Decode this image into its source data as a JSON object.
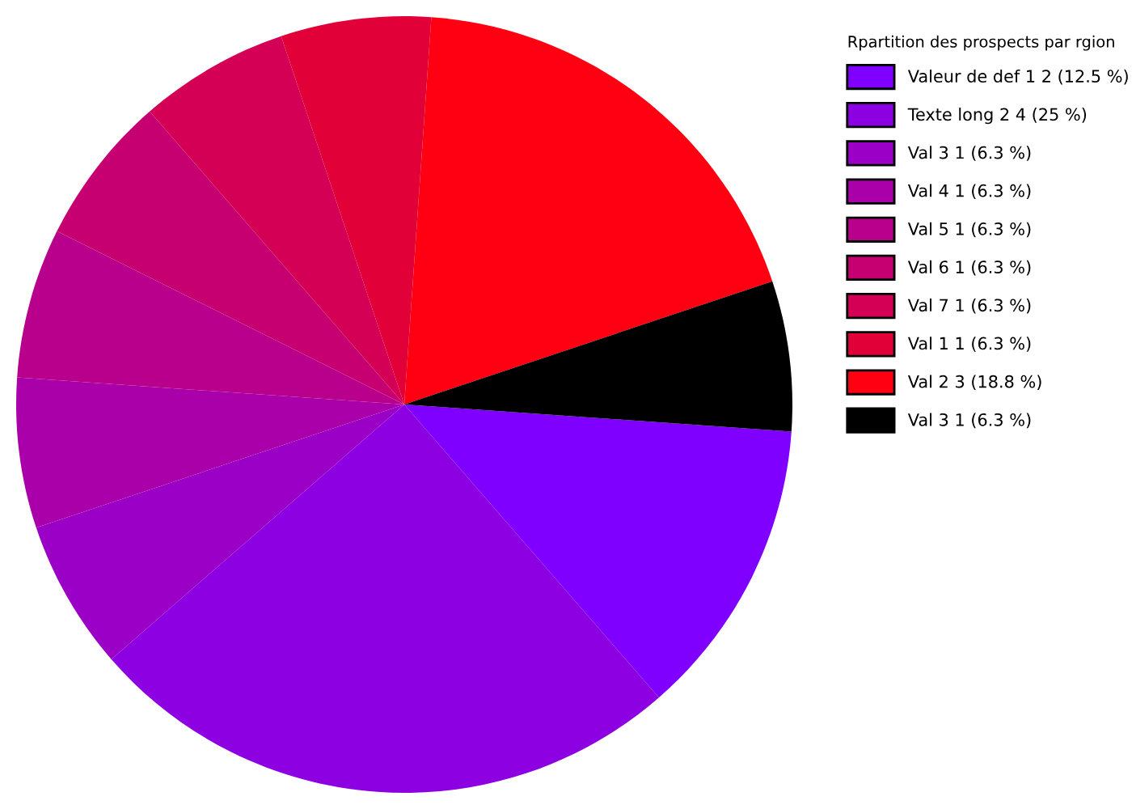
{
  "chart_data": {
    "type": "pie",
    "legend_title": "Rpartition des prospects par rgion",
    "legend": "right",
    "categories": [
      "Valeur de def 1 2 (12.5 %)",
      "Texte long 2 4 (25 %)",
      "Val 3 1 (6.3 %)",
      "Val 4 1 (6.3 %)",
      "Val 5 1 (6.3 %)",
      "Val 6 1 (6.3 %)",
      "Val 7 1 (6.3 %)",
      "Val 1 1 (6.3 %)",
      "Val 2 3 (18.8 %)",
      "Val 3 1 (6.3 %)"
    ],
    "values": [
      2,
      4,
      1,
      1,
      1,
      1,
      1,
      1,
      3,
      1
    ],
    "colors": [
      "#7f00ff",
      "#8d00e2",
      "#9b00c6",
      "#aa00aa",
      "#b8008d",
      "#c60071",
      "#d40055",
      "#e20038",
      "#ff0013",
      "#000000"
    ]
  }
}
